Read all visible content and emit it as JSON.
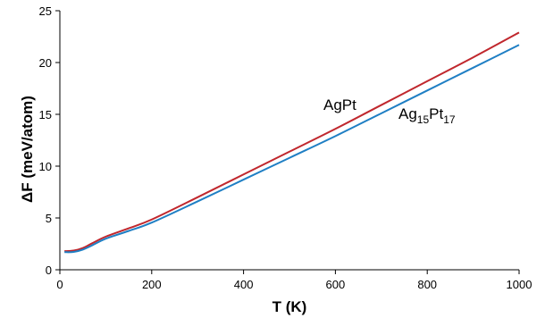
{
  "chart_data": {
    "type": "line",
    "title": "",
    "xlabel": "T (K)",
    "ylabel": "ΔF (meV/atom)",
    "xlim": [
      0,
      1000
    ],
    "ylim": [
      0,
      25
    ],
    "xticks": [
      "0",
      "200",
      "400",
      "600",
      "800",
      "1000"
    ],
    "yticks": [
      "0",
      "5",
      "10",
      "15",
      "20",
      "25"
    ],
    "grid": false,
    "series": [
      {
        "name": "AgPt",
        "color": "#c0272d",
        "x": [
          10,
          30,
          50,
          70,
          100,
          150,
          200,
          300,
          400,
          500,
          600,
          700,
          800,
          900,
          1000
        ],
        "y": [
          1.8,
          1.85,
          2.1,
          2.55,
          3.2,
          4.0,
          4.85,
          7.0,
          9.2,
          11.4,
          13.6,
          15.9,
          18.2,
          20.5,
          22.9
        ]
      },
      {
        "name_parts": {
          "a": "Ag",
          "a_sub": "15",
          "b": "Pt",
          "b_sub": "17"
        },
        "color": "#1f7fc4",
        "x": [
          10,
          30,
          50,
          70,
          100,
          150,
          200,
          300,
          400,
          500,
          600,
          700,
          800,
          900,
          1000
        ],
        "y": [
          1.7,
          1.72,
          1.95,
          2.35,
          3.0,
          3.75,
          4.55,
          6.6,
          8.7,
          10.8,
          12.9,
          15.1,
          17.3,
          19.5,
          21.7
        ]
      }
    ]
  }
}
